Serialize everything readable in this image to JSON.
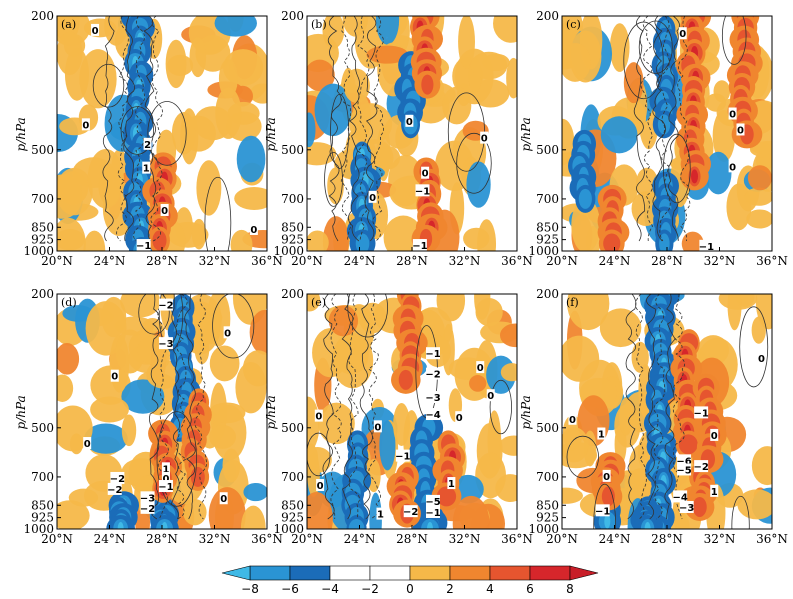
{
  "panels": [
    {
      "id": "a",
      "label": "(a)",
      "contour_labels": [
        {
          "text": "0",
          "x": 22.9,
          "p": 220
        },
        {
          "text": "0",
          "x": 22.2,
          "p": 420
        },
        {
          "text": "2",
          "x": 26.9,
          "p": 480
        },
        {
          "text": "1",
          "x": 26.8,
          "p": 565
        },
        {
          "text": "0",
          "x": 28.2,
          "p": 755
        },
        {
          "text": "0",
          "x": 35.0,
          "p": 860
        },
        {
          "text": "−1",
          "x": 26.6,
          "p": 960
        }
      ]
    },
    {
      "id": "b",
      "label": "(b)",
      "contour_labels": [
        {
          "text": "0",
          "x": 25.0,
          "p": 690
        },
        {
          "text": "0",
          "x": 27.8,
          "p": 410
        },
        {
          "text": "0",
          "x": 33.5,
          "p": 460
        },
        {
          "text": "0",
          "x": 29.0,
          "p": 585
        },
        {
          "text": "−1",
          "x": 28.8,
          "p": 660
        },
        {
          "text": "−1",
          "x": 28.6,
          "p": 960
        }
      ]
    },
    {
      "id": "c",
      "label": "(c)",
      "contour_labels": [
        {
          "text": "0",
          "x": 29.2,
          "p": 225
        },
        {
          "text": "0",
          "x": 33.0,
          "p": 390
        },
        {
          "text": "0",
          "x": 33.6,
          "p": 435
        },
        {
          "text": "0",
          "x": 33.0,
          "p": 560
        },
        {
          "text": "−1",
          "x": 31.0,
          "p": 965
        }
      ]
    },
    {
      "id": "d",
      "label": "(d)",
      "contour_labels": [
        {
          "text": "−2",
          "x": 28.3,
          "p": 215
        },
        {
          "text": "−3",
          "x": 28.3,
          "p": 280
        },
        {
          "text": "0",
          "x": 33.0,
          "p": 260
        },
        {
          "text": "0",
          "x": 24.4,
          "p": 350
        },
        {
          "text": "0",
          "x": 22.3,
          "p": 555
        },
        {
          "text": "1",
          "x": 28.3,
          "p": 660
        },
        {
          "text": "0",
          "x": 28.3,
          "p": 705
        },
        {
          "text": "−1",
          "x": 28.3,
          "p": 745
        },
        {
          "text": "−2",
          "x": 24.6,
          "p": 705
        },
        {
          "text": "−2",
          "x": 24.4,
          "p": 760
        },
        {
          "text": "−3",
          "x": 26.9,
          "p": 805
        },
        {
          "text": "−2",
          "x": 26.9,
          "p": 865
        },
        {
          "text": "0",
          "x": 32.7,
          "p": 810
        }
      ]
    },
    {
      "id": "e",
      "label": "(e)",
      "contour_labels": [
        {
          "text": "−1",
          "x": 29.6,
          "p": 300
        },
        {
          "text": "−2",
          "x": 29.6,
          "p": 345
        },
        {
          "text": "−3",
          "x": 29.6,
          "p": 405
        },
        {
          "text": "−4",
          "x": 29.6,
          "p": 455
        },
        {
          "text": "0",
          "x": 33.2,
          "p": 330
        },
        {
          "text": "0",
          "x": 31.6,
          "p": 465
        },
        {
          "text": "0",
          "x": 34.0,
          "p": 400
        },
        {
          "text": "0",
          "x": 20.9,
          "p": 460
        },
        {
          "text": "0",
          "x": 25.4,
          "p": 495
        },
        {
          "text": "−1",
          "x": 27.3,
          "p": 605
        },
        {
          "text": "1",
          "x": 31.0,
          "p": 730
        },
        {
          "text": "0",
          "x": 21.0,
          "p": 740
        },
        {
          "text": "−5",
          "x": 29.6,
          "p": 825
        },
        {
          "text": "−2",
          "x": 27.9,
          "p": 885
        },
        {
          "text": "−1",
          "x": 29.6,
          "p": 890
        },
        {
          "text": "1",
          "x": 25.6,
          "p": 900
        }
      ]
    },
    {
      "id": "f",
      "label": "(f)",
      "contour_labels": [
        {
          "text": "0",
          "x": 35.2,
          "p": 310
        },
        {
          "text": "−1",
          "x": 30.6,
          "p": 450
        },
        {
          "text": "0",
          "x": 20.8,
          "p": 470
        },
        {
          "text": "1",
          "x": 23.0,
          "p": 520
        },
        {
          "text": "0",
          "x": 31.6,
          "p": 525
        },
        {
          "text": "−6",
          "x": 29.3,
          "p": 625
        },
        {
          "text": "−2",
          "x": 30.6,
          "p": 650
        },
        {
          "text": "−5",
          "x": 29.3,
          "p": 665
        },
        {
          "text": "0",
          "x": 23.4,
          "p": 695
        },
        {
          "text": "1",
          "x": 31.6,
          "p": 770
        },
        {
          "text": "−4",
          "x": 29.0,
          "p": 800
        },
        {
          "text": "−3",
          "x": 29.5,
          "p": 860
        },
        {
          "text": "−1",
          "x": 23.1,
          "p": 880
        }
      ]
    }
  ],
  "x_axis": {
    "ticks": [
      20,
      24,
      28,
      32,
      36
    ],
    "tick_labels": [
      "20°N",
      "24°N",
      "28°N",
      "32°N",
      "36°N"
    ]
  },
  "y_axis": {
    "label": "p/hPa",
    "log_scale": true,
    "range": [
      1000,
      200
    ],
    "ticks": [
      200,
      500,
      700,
      850,
      925,
      1000
    ],
    "tick_labels": [
      "200",
      "500",
      "700",
      "850",
      "925",
      "1000"
    ]
  },
  "colorbar": {
    "levels": [
      -8,
      -6,
      -4,
      -2,
      0,
      2,
      4,
      6,
      8
    ],
    "tick_labels": [
      "−8",
      "−6",
      "−4",
      "−2",
      "0",
      "2",
      "4",
      "6",
      "8"
    ],
    "colors": [
      "#3fb9e6",
      "#2a94d4",
      "#1b6cb8",
      "#ffffff",
      "#ffffff",
      "#f5b849",
      "#f0862f",
      "#e6552f",
      "#d6262b",
      "#c81e28"
    ],
    "extend": "both"
  }
}
